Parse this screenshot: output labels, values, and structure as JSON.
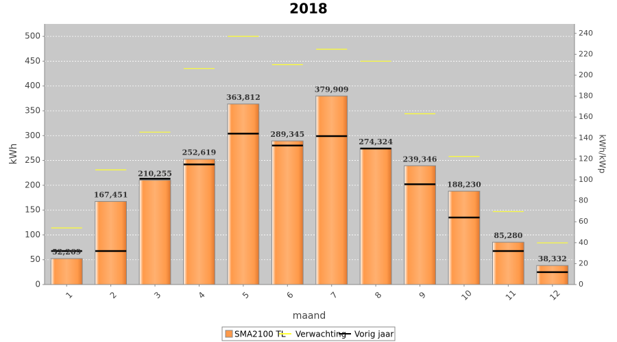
{
  "chart_data": {
    "type": "bar",
    "title": "2018",
    "x_label": "maand",
    "y_label": "kWh",
    "y2_label": "kWh/kWp",
    "categories": [
      "1",
      "2",
      "3",
      "4",
      "5",
      "6",
      "7",
      "8",
      "9",
      "10",
      "11",
      "12"
    ],
    "ylim": [
      0,
      525
    ],
    "yticks": [
      0,
      50,
      100,
      150,
      200,
      250,
      300,
      350,
      400,
      450,
      500
    ],
    "y2lim": [
      0,
      249
    ],
    "y2ticks": [
      0,
      20,
      40,
      60,
      80,
      100,
      120,
      140,
      160,
      180,
      200,
      220,
      240
    ],
    "grid": true,
    "legend": "bottom",
    "series": [
      {
        "name": "SMA2100 TL",
        "type": "bar",
        "color": "#ff9a4a",
        "values": [
          52.269,
          167.451,
          210.255,
          252.619,
          363.812,
          289.345,
          379.909,
          274.324,
          239.346,
          188.23,
          85.28,
          38.332
        ],
        "value_labels": [
          "52,269",
          "167,451",
          "210,255",
          "252,619",
          "363,812",
          "289,345",
          "379,909",
          "274,324",
          "239,346",
          "188,230",
          "85,280",
          "38,332"
        ]
      },
      {
        "name": "Verwachting",
        "type": "dash",
        "color": "#ffff33",
        "values": [
          114,
          231,
          307,
          435,
          500,
          443,
          474,
          450,
          344,
          258,
          147,
          84
        ]
      },
      {
        "name": "Vorig jaar",
        "type": "dash",
        "color": "#000000",
        "values": [
          67.5,
          67.5,
          213,
          242,
          304,
          280,
          299,
          274,
          202,
          135,
          67.5,
          25
        ]
      }
    ]
  }
}
